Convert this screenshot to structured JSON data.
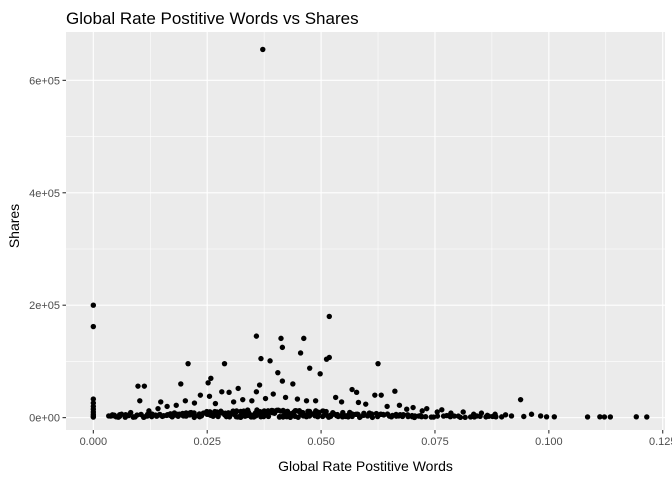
{
  "chart_data": {
    "type": "scatter",
    "title": "Global Rate Postitive Words vs Shares",
    "xlabel": "Global Rate Postitive Words",
    "ylabel": "Shares",
    "xlim": [
      -0.006,
      0.1255
    ],
    "ylim": [
      -22000,
      686000
    ],
    "x_ticks": [
      0,
      0.025,
      0.05,
      0.075,
      0.1,
      0.125
    ],
    "x_tick_labels": [
      "0.000",
      "0.025",
      "0.050",
      "0.075",
      "0.100",
      "0.125"
    ],
    "y_ticks": [
      0,
      200000,
      400000,
      600000
    ],
    "y_tick_labels": [
      "0e+00",
      "2e+05",
      "4e+05",
      "6e+05"
    ],
    "grid": true,
    "legend": "none",
    "colors": {
      "panel": "#ebebeb",
      "grid": "#ffffff",
      "point": "#000000"
    },
    "points": [
      [
        0.0,
        200000
      ],
      [
        0.0,
        162000
      ],
      [
        0.0,
        33000
      ],
      [
        0.0,
        26000
      ],
      [
        0.0,
        20000
      ],
      [
        0.0,
        15000
      ],
      [
        0.0,
        10000
      ],
      [
        0.0,
        6000
      ],
      [
        0.0,
        3000
      ],
      [
        0.0,
        1000
      ],
      [
        0.0372,
        655000
      ],
      [
        0.0518,
        180000
      ],
      [
        0.0358,
        145000
      ],
      [
        0.0412,
        141000
      ],
      [
        0.0462,
        141000
      ],
      [
        0.0415,
        125000
      ],
      [
        0.0455,
        115000
      ],
      [
        0.0518,
        107000
      ],
      [
        0.0512,
        104000
      ],
      [
        0.0368,
        105000
      ],
      [
        0.0625,
        96000
      ],
      [
        0.0208,
        96000
      ],
      [
        0.0288,
        96000
      ],
      [
        0.0388,
        101000
      ],
      [
        0.0475,
        88000
      ],
      [
        0.0498,
        78000
      ],
      [
        0.0405,
        80000
      ],
      [
        0.0415,
        65000
      ],
      [
        0.0438,
        60000
      ],
      [
        0.0365,
        58000
      ],
      [
        0.0258,
        70000
      ],
      [
        0.0252,
        62000
      ],
      [
        0.0192,
        60000
      ],
      [
        0.0098,
        56000
      ],
      [
        0.0112,
        56000
      ],
      [
        0.0318,
        52000
      ],
      [
        0.0358,
        46000
      ],
      [
        0.0568,
        50000
      ],
      [
        0.0578,
        45000
      ],
      [
        0.0662,
        47000
      ],
      [
        0.0618,
        40000
      ],
      [
        0.0632,
        40000
      ],
      [
        0.0282,
        46000
      ],
      [
        0.0298,
        45000
      ],
      [
        0.0938,
        32000
      ],
      [
        0.0532,
        36000
      ],
      [
        0.0235,
        40000
      ],
      [
        0.0255,
        38000
      ],
      [
        0.0395,
        42000
      ],
      [
        0.0102,
        30000
      ],
      [
        0.0148,
        28000
      ],
      [
        0.0202,
        30000
      ],
      [
        0.0268,
        25000
      ],
      [
        0.0448,
        33000
      ],
      [
        0.0468,
        30000
      ],
      [
        0.0582,
        27000
      ],
      [
        0.0672,
        22000
      ],
      [
        0.0702,
        18000
      ],
      [
        0.0732,
        16000
      ],
      [
        0.0765,
        14000
      ],
      [
        0.0812,
        10000
      ],
      [
        0.0852,
        8000
      ],
      [
        0.0882,
        6000
      ],
      [
        0.0905,
        5000
      ],
      [
        0.0962,
        6000
      ],
      [
        0.0982,
        3000
      ],
      [
        0.1012,
        1500
      ],
      [
        0.1085,
        1200
      ],
      [
        0.1112,
        1500
      ],
      [
        0.1122,
        1200
      ],
      [
        0.1135,
        1200
      ],
      [
        0.1192,
        1500
      ],
      [
        0.1215,
        1200
      ],
      [
        0.0042,
        5000
      ],
      [
        0.0062,
        6000
      ],
      [
        0.0082,
        9000
      ],
      [
        0.0122,
        12000
      ],
      [
        0.0142,
        16000
      ],
      [
        0.0162,
        20000
      ],
      [
        0.0182,
        22000
      ],
      [
        0.0222,
        26000
      ],
      [
        0.0308,
        28000
      ],
      [
        0.0328,
        32000
      ],
      [
        0.0348,
        30000
      ],
      [
        0.0378,
        34000
      ],
      [
        0.0422,
        36000
      ],
      [
        0.0488,
        30000
      ],
      [
        0.0545,
        28000
      ],
      [
        0.0598,
        24000
      ],
      [
        0.0645,
        20000
      ],
      [
        0.0688,
        15000
      ],
      [
        0.0722,
        12000
      ],
      [
        0.0755,
        10000
      ],
      [
        0.0785,
        8000
      ],
      [
        0.0835,
        6000
      ],
      [
        0.0865,
        4000
      ],
      [
        0.0918,
        3000
      ],
      [
        0.0945,
        2000
      ],
      [
        0.0995,
        1500
      ]
    ]
  }
}
